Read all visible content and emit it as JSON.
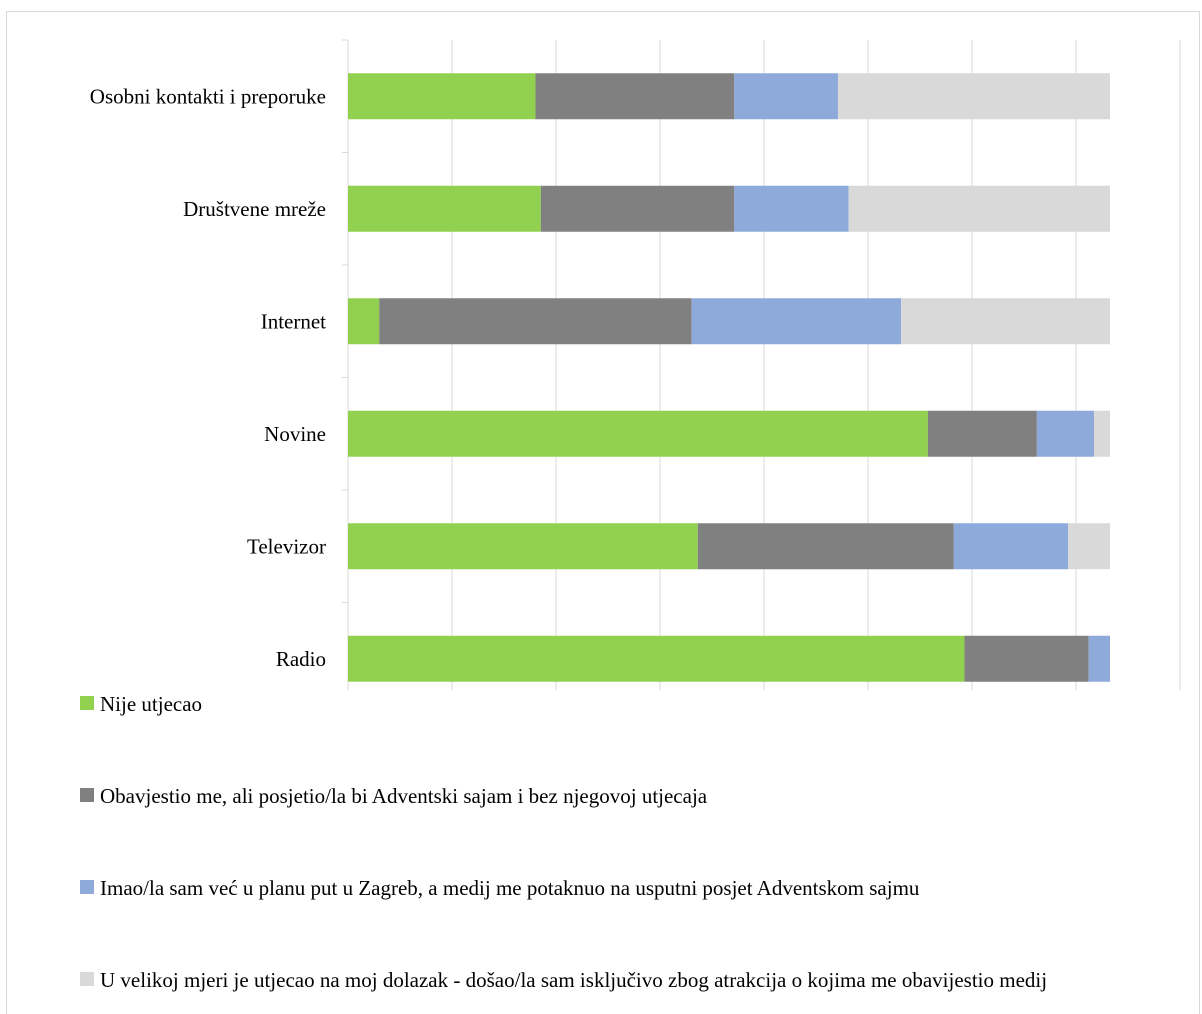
{
  "chart_data": {
    "type": "bar",
    "orientation": "horizontal",
    "stacked": true,
    "percent_stacked": true,
    "title": "",
    "xlabel": "",
    "ylabel": "",
    "xlim": [
      0,
      100
    ],
    "grid": true,
    "legend_position": "bottom",
    "categories": [
      "Osobni kontakti i preporuke",
      "Društvene mreže",
      "Internet",
      "Novine",
      "Televizor",
      "Radio"
    ],
    "series": [
      {
        "name": "Nije utjecao",
        "color": "#92d050",
        "values": [
          24.6,
          25.3,
          4.1,
          76.1,
          45.9,
          80.9
        ]
      },
      {
        "name": "Obavjestio me, ali posjetio/la bi Adventski sajam i bez njegovoj utjecaja",
        "color": "#808080",
        "values": [
          26.1,
          25.4,
          41.0,
          14.3,
          33.6,
          16.3
        ]
      },
      {
        "name": "Imao/la sam već u planu put u Zagreb, a medij me potaknuo na usputni posjet Adventskom sajmu",
        "color": "#8eaadb",
        "values": [
          13.6,
          15.0,
          27.5,
          7.5,
          15.0,
          2.8
        ]
      },
      {
        "name": "U velikoj mjeri je utjecao na moj dolazak - došao/la sam isključivo zbog atrakcija o kojima me obavijestio medij",
        "color": "#d9d9d9",
        "values": [
          35.7,
          34.3,
          27.4,
          2.1,
          5.5,
          0.0
        ]
      }
    ]
  }
}
